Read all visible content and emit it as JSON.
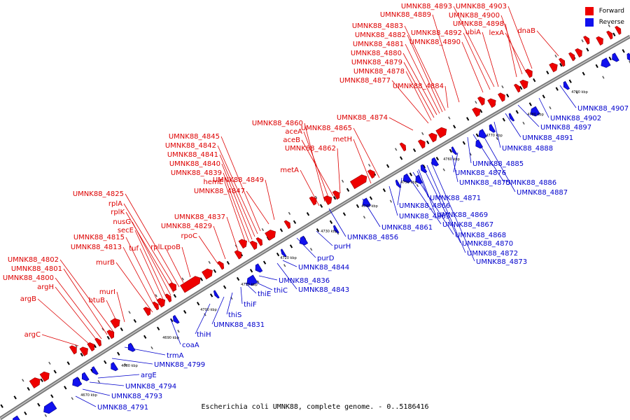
{
  "caption": "Escherichia coli UMNK88, complete genome. - 0..5186416",
  "legend": {
    "forward": "Forward",
    "reverse": "Reverse",
    "forward_color": "#ff0000",
    "reverse_color": "#0000ff"
  },
  "ticks": [
    "4670 kbp",
    "4680 kbp",
    "4690 kbp",
    "4700 kbp",
    "4710 kbp",
    "4720 kbp",
    "4730 kbp",
    "4740 kbp",
    "4750 kbp",
    "4760 kbp",
    "4770 kbp",
    "4780 kbp",
    "4790 kbp"
  ],
  "forward_labels": [
    "argC",
    "argB",
    "argH",
    "UMNK88_4800",
    "UMNK88_4801",
    "UMNK88_4802",
    "btuB",
    "murI",
    "murB",
    "UMNK88_4813",
    "UMNK88_4815",
    "tuf",
    "secE",
    "nusG",
    "rplK",
    "rplA",
    "UMNK88_4825",
    "rplL",
    "rpoB",
    "rpoC",
    "UMNK88_4829",
    "UMNK88_4837",
    "hemE",
    "UMNK88_4839",
    "UMNK88_4840",
    "UMNK88_4841",
    "UMNK88_4842",
    "UMNK88_4845",
    "UMNK88_4847",
    "UMNK88_4849",
    "metA",
    "UMNK88_4860",
    "aceA",
    "aceB",
    "UMNK88_4862",
    "metH",
    "UMNK88_4865",
    "UMNK88_4874",
    "UMNK88_4877",
    "UMNK88_4878",
    "UMNK88_4879",
    "UMNK88_4880",
    "UMNK88_4881",
    "UMNK88_4882",
    "UMNK88_4883",
    "UMNK88_4884",
    "UMNK88_4889",
    "UMNK88_4890",
    "UMNK88_4892",
    "UMNK88_4893",
    "ubiA",
    "UMNK88_4898",
    "UMNK88_4900",
    "lexA",
    "UMNK88_4903",
    "dnaB"
  ],
  "reverse_labels": [
    "UMNK88_4791",
    "UMNK88_4793",
    "UMNK88_4794",
    "argE",
    "UMNK88_4799",
    "trmA",
    "coaA",
    "thiH",
    "UMNK88_4831",
    "thiS",
    "thiF",
    "thiE",
    "thiC",
    "UMNK88_4836",
    "UMNK88_4843",
    "UMNK88_4844",
    "purD",
    "purH",
    "UMNK88_4856",
    "UMNK88_4861",
    "UMNK88_4863",
    "UMNK88_4866",
    "UMNK88_4867",
    "UMNK88_4868",
    "UMNK88_4869",
    "UMNK88_4870",
    "UMNK88_4871",
    "UMNK88_4872",
    "UMNK88_4873",
    "UMNK88_4875",
    "UMNK88_4876",
    "UMNK88_4885",
    "UMNK88_4886",
    "UMNK88_4887",
    "UMNK88_4888",
    "UMNK88_4891",
    "UMNK88_4897",
    "UMNK88_4902",
    "UMNK88_4907"
  ]
}
